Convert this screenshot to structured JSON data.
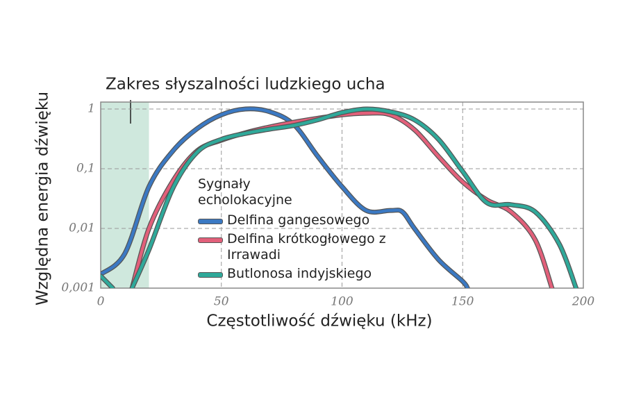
{
  "chart_data": {
    "type": "line",
    "xlabel": "Częstotliwość dźwięku (kHz)",
    "ylabel": "Względna energia dźwięku",
    "legend_title": "Sygnały echolokacyjne",
    "annotation": {
      "text": "Zakres słyszalności ludzkiego ucha",
      "x_range": [
        0,
        20
      ]
    },
    "xlim": [
      0,
      200
    ],
    "xticks": [
      0,
      50,
      100,
      150,
      200
    ],
    "ylim": [
      0.001,
      1
    ],
    "yticks": [
      {
        "value": 0.001,
        "label": "0,001"
      },
      {
        "value": 0.01,
        "label": "0,01"
      },
      {
        "value": 0.1,
        "label": "0,1"
      },
      1
    ],
    "ylog": true,
    "grid": true,
    "series": [
      {
        "name": "Delfina gangesowego",
        "color": "#3b79c3",
        "x": [
          0,
          10,
          20,
          30,
          40,
          50,
          60,
          70,
          80,
          90,
          100,
          110,
          120,
          125,
          130,
          140,
          150,
          152
        ],
        "values": [
          0.0017,
          0.0038,
          0.05,
          0.2,
          0.47,
          0.8,
          1.0,
          0.9,
          0.55,
          0.16,
          0.05,
          0.02,
          0.02,
          0.019,
          0.01,
          0.003,
          0.0013,
          0.001
        ]
      },
      {
        "name": "Delfina krótkogłowego z Irrawadi",
        "color": "#e2607a",
        "x": [
          13,
          20,
          30,
          40,
          50,
          60,
          70,
          80,
          90,
          100,
          110,
          120,
          130,
          140,
          150,
          160,
          170,
          180,
          187
        ],
        "values": [
          0.001,
          0.01,
          0.063,
          0.2,
          0.3,
          0.4,
          0.5,
          0.6,
          0.7,
          0.8,
          0.85,
          0.8,
          0.45,
          0.16,
          0.06,
          0.03,
          0.019,
          0.0065,
          0.001
        ]
      },
      {
        "name": "Butlonosa indyjskiego",
        "color": "#2fa99a",
        "x": [
          0,
          5,
          null,
          13,
          20,
          30,
          40,
          50,
          60,
          70,
          80,
          90,
          100,
          110,
          120,
          130,
          140,
          150,
          160,
          170,
          180,
          190,
          197
        ],
        "values": [
          0.0016,
          0.001,
          null,
          0.001,
          0.0044,
          0.048,
          0.19,
          0.31,
          0.39,
          0.46,
          0.53,
          0.66,
          0.87,
          1.0,
          0.9,
          0.66,
          0.31,
          0.09,
          0.027,
          0.025,
          0.019,
          0.0055,
          0.001
        ]
      }
    ]
  }
}
